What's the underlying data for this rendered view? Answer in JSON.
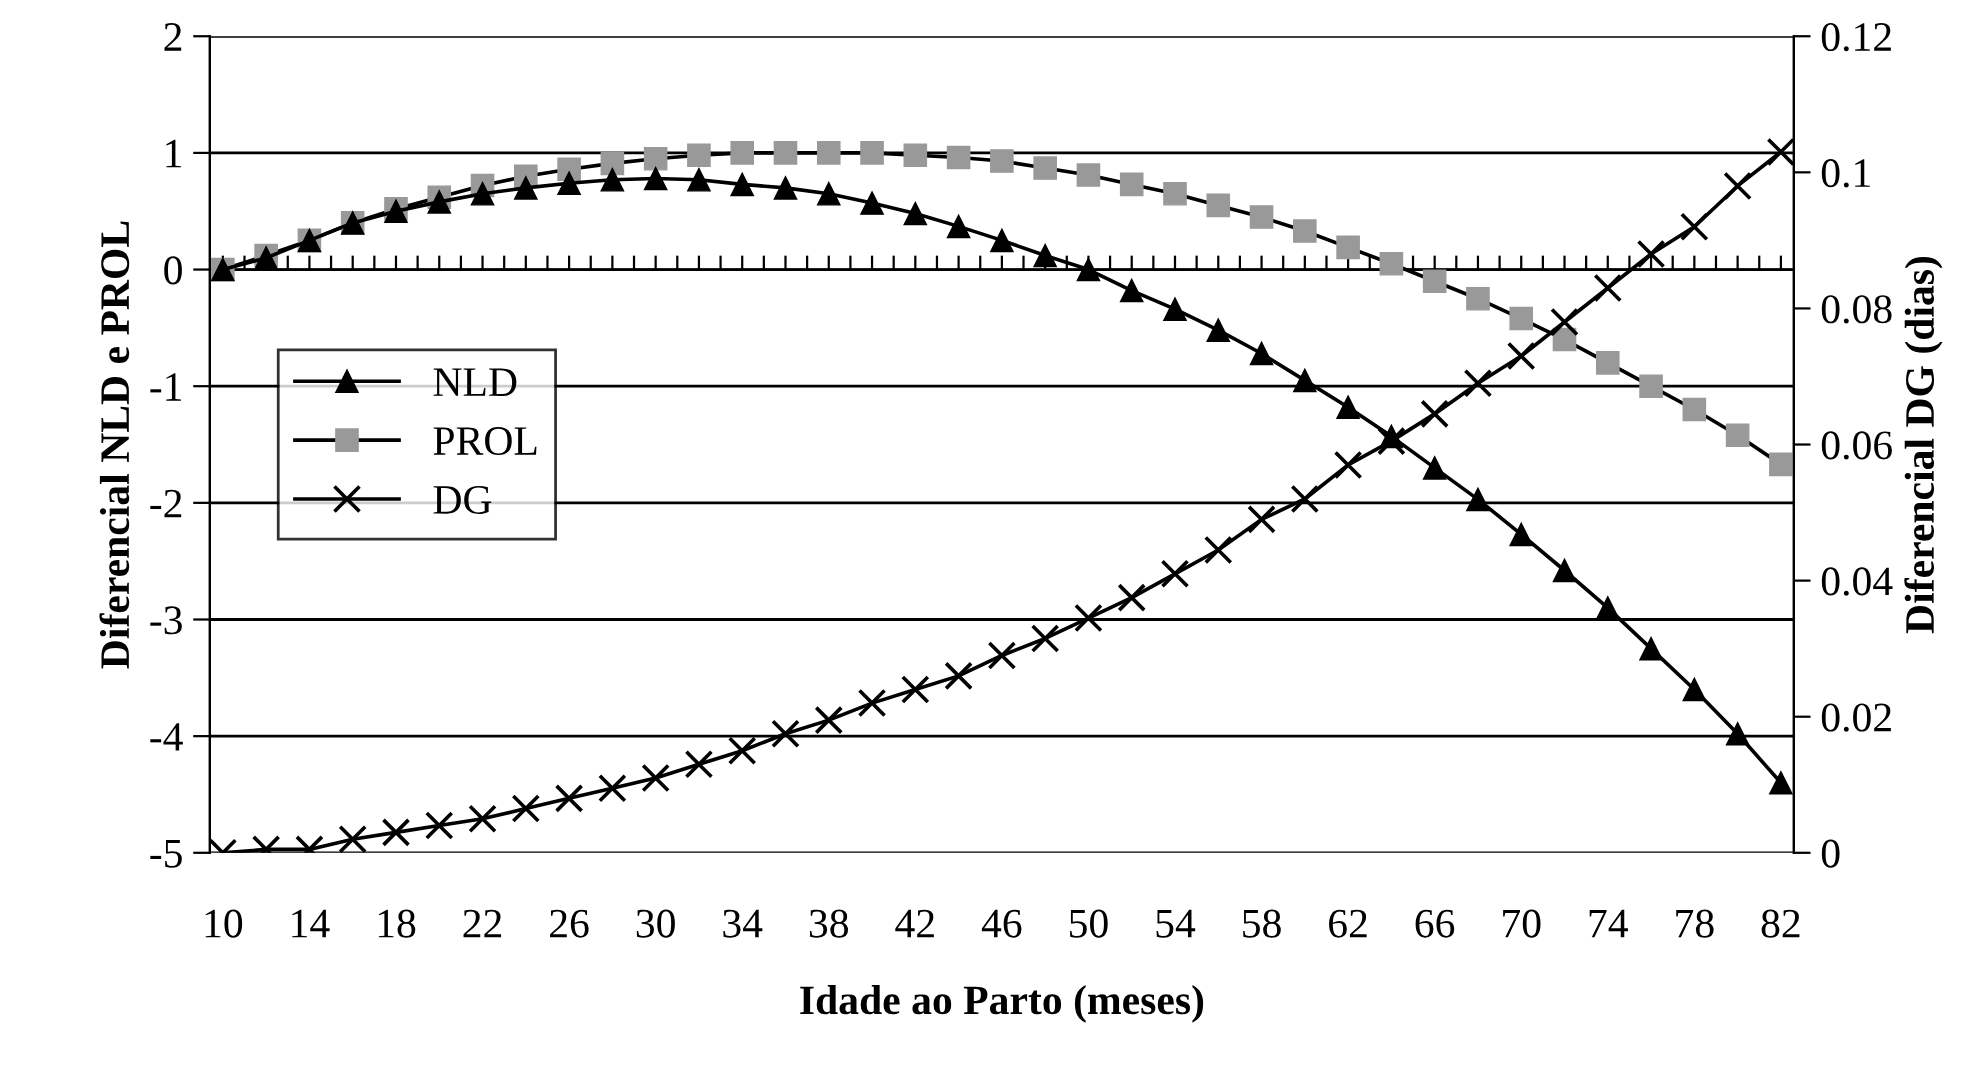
{
  "chart_data": {
    "type": "line",
    "xlabel": "Idade ao Parto (meses)",
    "ylabel": "Diferencial NLD e PROL",
    "y2label": "Diferencial DG (dias)",
    "categories": [
      "10",
      null,
      "14",
      null,
      "18",
      null,
      "22",
      null,
      "26",
      null,
      "30",
      null,
      "34",
      null,
      "38",
      null,
      "42",
      null,
      "46",
      null,
      "50",
      null,
      "54",
      null,
      "58",
      null,
      "62",
      null,
      "66",
      null,
      "70",
      null,
      "74",
      null,
      "78",
      null,
      "82"
    ],
    "series": [
      {
        "name": "NLD",
        "color": "#000000",
        "marker": "triangle",
        "values": [
          0,
          0.1,
          0.25,
          0.4,
          0.5,
          0.58,
          0.65,
          0.7,
          0.74,
          0.77,
          0.78,
          0.77,
          0.73,
          0.7,
          0.65,
          0.57,
          0.48,
          0.37,
          0.25,
          0.12,
          0,
          -0.18,
          -0.34,
          -0.52,
          -0.72,
          -0.95,
          -1.18,
          -1.43,
          -1.7,
          -1.97,
          -2.27,
          -2.58,
          -2.9,
          -3.25,
          -3.6,
          -3.98,
          -4.4
        ]
      },
      {
        "name": "PROL",
        "color": "#999999",
        "marker": "square",
        "values": [
          0,
          0.12,
          0.25,
          0.4,
          0.52,
          0.62,
          0.72,
          0.8,
          0.86,
          0.91,
          0.95,
          0.98,
          1.0,
          1.0,
          1.0,
          1.0,
          0.98,
          0.96,
          0.93,
          0.87,
          0.81,
          0.73,
          0.65,
          0.55,
          0.45,
          0.33,
          0.19,
          0.05,
          -0.1,
          -0.25,
          -0.42,
          -0.6,
          -0.8,
          -1.0,
          -1.2,
          -1.42,
          -1.67
        ]
      },
      {
        "name": "DG",
        "color": "#000000",
        "marker": "cross",
        "axis": "y2",
        "values": [
          0,
          0.0005,
          0.0005,
          0.002,
          0.003,
          0.004,
          0.005,
          0.0065,
          0.008,
          0.0095,
          0.011,
          0.013,
          0.015,
          0.0175,
          0.0195,
          0.022,
          0.024,
          0.026,
          0.029,
          0.0315,
          0.0345,
          0.0375,
          0.041,
          0.0445,
          0.049,
          0.052,
          0.057,
          0.0605,
          0.0645,
          0.069,
          0.073,
          0.078,
          0.083,
          0.088,
          0.092,
          0.098,
          0.103
        ]
      }
    ],
    "ylim": [
      -5,
      2
    ],
    "yticks": [
      -5,
      -4,
      -3,
      -2,
      -1,
      0,
      1,
      2
    ],
    "y2lim": [
      0,
      0.12
    ],
    "y2ticks": [
      0,
      0.02,
      0.04,
      0.06,
      0.08,
      0.1,
      0.12
    ],
    "grid": "y",
    "legend": "center left",
    "line_style": "solid"
  }
}
